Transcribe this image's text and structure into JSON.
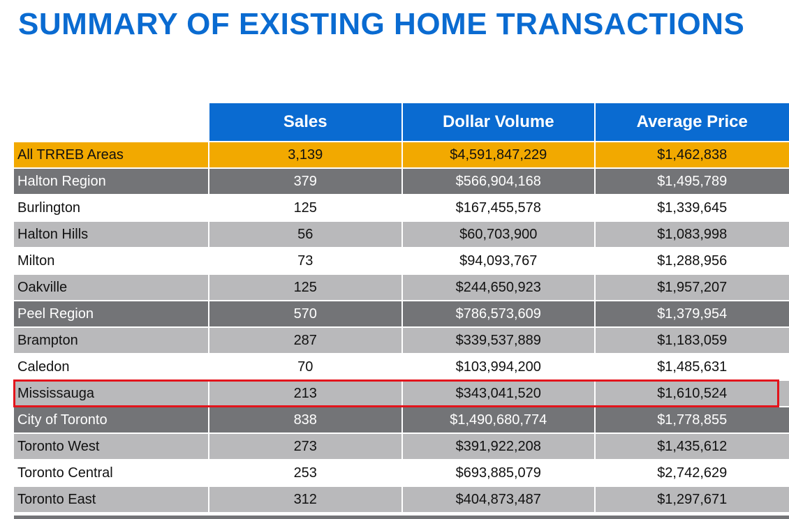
{
  "title": "SUMMARY OF EXISTING HOME TRANSACTIONS",
  "columns": [
    "Sales",
    "Dollar Volume",
    "Average Price"
  ],
  "rows": [
    {
      "area": "All TRREB Areas",
      "sales": "3,139",
      "volume": "$4,591,847,229",
      "avg": "$1,462,838",
      "style": "gold"
    },
    {
      "area": "Halton Region",
      "sales": "379",
      "volume": "$566,904,168",
      "avg": "$1,495,789",
      "style": "dark"
    },
    {
      "area": "Burlington",
      "sales": "125",
      "volume": "$167,455,578",
      "avg": "$1,339,645",
      "style": "white"
    },
    {
      "area": "Halton Hills",
      "sales": "56",
      "volume": "$60,703,900",
      "avg": "$1,083,998",
      "style": "light"
    },
    {
      "area": "Milton",
      "sales": "73",
      "volume": "$94,093,767",
      "avg": "$1,288,956",
      "style": "white"
    },
    {
      "area": "Oakville",
      "sales": "125",
      "volume": "$244,650,923",
      "avg": "$1,957,207",
      "style": "light"
    },
    {
      "area": "Peel Region",
      "sales": "570",
      "volume": "$786,573,609",
      "avg": "$1,379,954",
      "style": "dark"
    },
    {
      "area": "Brampton",
      "sales": "287",
      "volume": "$339,537,889",
      "avg": "$1,183,059",
      "style": "light"
    },
    {
      "area": "Caledon",
      "sales": "70",
      "volume": "$103,994,200",
      "avg": "$1,485,631",
      "style": "white"
    },
    {
      "area": "Mississauga",
      "sales": "213",
      "volume": "$343,041,520",
      "avg": "$1,610,524",
      "style": "light"
    },
    {
      "area": "City of Toronto",
      "sales": "838",
      "volume": "$1,490,680,774",
      "avg": "$1,778,855",
      "style": "dark"
    },
    {
      "area": "Toronto West",
      "sales": "273",
      "volume": "$391,922,208",
      "avg": "$1,435,612",
      "style": "light"
    },
    {
      "area": "Toronto Central",
      "sales": "253",
      "volume": "$693,885,079",
      "avg": "$2,742,629",
      "style": "white"
    },
    {
      "area": "Toronto East",
      "sales": "312",
      "volume": "$404,873,487",
      "avg": "$1,297,671",
      "style": "light"
    }
  ],
  "colors": {
    "title_blue": "#0a6bd1",
    "header_blue": "#0a6bd1",
    "total_gold": "#f2a900",
    "region_dark": "#737477",
    "row_light": "#b9b9bb",
    "highlight_red": "#e3141c"
  }
}
